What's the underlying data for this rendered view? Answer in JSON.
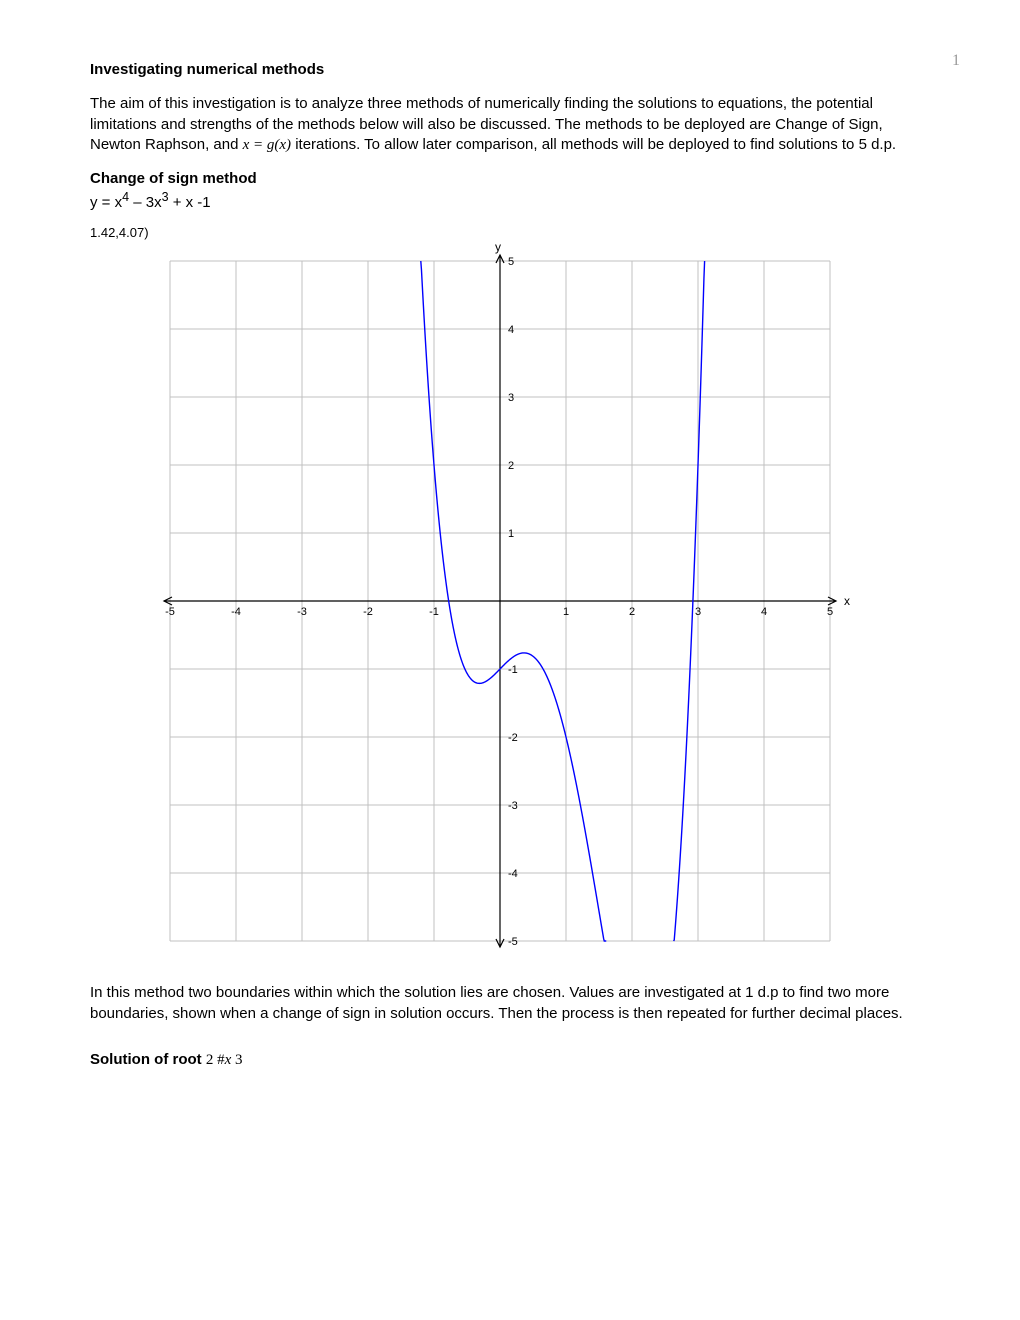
{
  "page": {
    "number": "1"
  },
  "title": "Investigating numerical methods",
  "intro": {
    "part1": "The aim of this investigation is to analyze three methods of numerically finding the solutions to equations, the potential limitations and strengths of the methods below will also be discussed. The methods to be deployed are Change of Sign, Newton Raphson, and ",
    "inline_eq": "x = g(x)",
    "part2": " iterations. To allow later comparison, all methods will be deployed to find solutions to 5 d.p."
  },
  "section1": {
    "heading": "Change of sign method",
    "equation_prefix": "y = x",
    "equation_sup1": "4",
    "equation_mid": " – 3x",
    "equation_sup2": "3",
    "equation_suffix": " + x -1"
  },
  "chart": {
    "corner_label": "1.42,4.07)",
    "type": "line",
    "xlim": [
      -5,
      5
    ],
    "ylim": [
      -5,
      5
    ],
    "xtick_step": 1,
    "ytick_step": 1,
    "x_axis_label": "x",
    "y_axis_label": "y",
    "grid_color": "#c0c0c0",
    "axis_color": "#000000",
    "curve_color": "#0000ff",
    "background_color": "#ffffff",
    "x_ticks": [
      -5,
      -4,
      -3,
      -2,
      -1,
      1,
      2,
      3,
      4,
      5
    ],
    "y_ticks": [
      -5,
      -4,
      -3,
      -2,
      -1,
      1,
      2,
      3,
      4,
      5
    ],
    "function": "x^4 - 3x^3 + x - 1"
  },
  "para2": "In this method two boundaries within which the solution lies are chosen. Values are investigated at 1 d.p to find two more boundaries, shown when a change of sign in solution occurs.  Then the process is then repeated for further decimal places.",
  "solution": {
    "label": "Solution of root ",
    "expr_pre": "2 ",
    "expr_sym": "#",
    "expr_var": "x",
    "expr_post": "   3"
  }
}
